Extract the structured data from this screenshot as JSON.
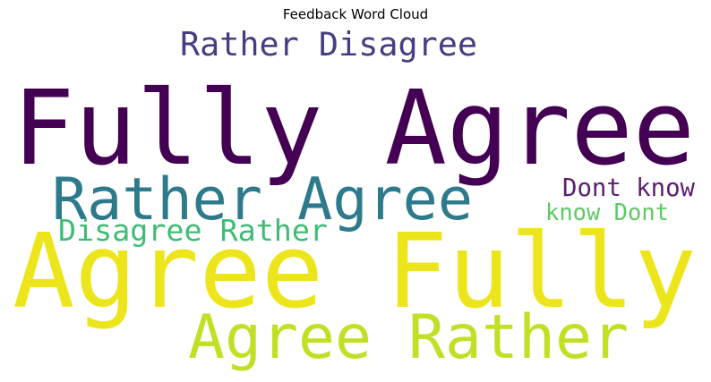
{
  "chart_data": {
    "type": "wordcloud",
    "title": "Feedback Word Cloud",
    "words": [
      {
        "text": "Fully Agree",
        "color": "#440154"
      },
      {
        "text": "Agree Fully",
        "color": "#ede51b"
      },
      {
        "text": "Rather Agree",
        "color": "#2d7a8c"
      },
      {
        "text": "Agree Rather",
        "color": "#c1df24"
      },
      {
        "text": "Rather Disagree",
        "color": "#453e82"
      },
      {
        "text": "Disagree Rather",
        "color": "#3dbc74"
      },
      {
        "text": "Dont know",
        "color": "#5a1f6f"
      },
      {
        "text": "know Dont",
        "color": "#5ec962"
      }
    ]
  }
}
